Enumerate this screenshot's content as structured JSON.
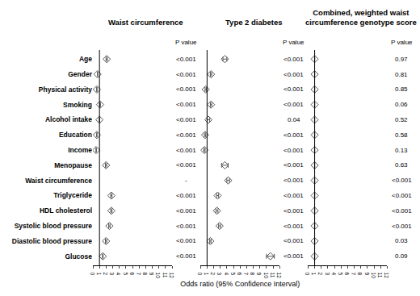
{
  "chart_data": {
    "type": "forest",
    "x_title": "Odds ratio (95% Confidence Interval)",
    "p_header": "P value",
    "color": "#555555",
    "marker": "diamond-open",
    "reference": 1,
    "xlim": [
      0,
      12
    ],
    "xticks": [
      0,
      1,
      2,
      3,
      4,
      5,
      6,
      7,
      8,
      9,
      10,
      11,
      12
    ],
    "categories": [
      "Age",
      "Gender",
      "Physical activity",
      "Smoking",
      "Alcohol intake",
      "Education",
      "Income",
      "Menopause",
      "Waist circumference",
      "Triglyceride",
      "HDL cholesterol",
      "Systolic blood pressure",
      "Diastolic blood pressure",
      "Glucose"
    ],
    "panels": [
      {
        "title": "Waist circumference",
        "values": [
          2.1,
          0.7,
          0.6,
          1.1,
          1.0,
          0.6,
          0.5,
          2.0,
          null,
          2.8,
          2.8,
          2.5,
          2.0,
          1.5
        ],
        "ci_low": [
          2.0,
          0.68,
          0.57,
          1.05,
          0.97,
          0.57,
          0.47,
          1.9,
          null,
          2.7,
          2.7,
          2.4,
          1.9,
          1.45
        ],
        "ci_high": [
          2.2,
          0.72,
          0.63,
          1.15,
          1.03,
          0.63,
          0.53,
          2.1,
          null,
          2.9,
          2.9,
          2.6,
          2.1,
          1.55
        ],
        "p_values": [
          "<0.001",
          "<0.001",
          "<0.001",
          "<0.001",
          "<0.001",
          "<0.001",
          "<0.001",
          "<0.001",
          "-",
          "<0.001",
          "<0.001",
          "<0.001",
          "<0.001",
          "<0.001"
        ]
      },
      {
        "title": "Type 2 diabetes",
        "values": [
          3.7,
          1.6,
          0.8,
          1.6,
          1.2,
          0.7,
          0.6,
          3.7,
          4.2,
          2.6,
          2.5,
          2.9,
          1.5,
          10.6
        ],
        "ci_low": [
          3.4,
          1.5,
          0.7,
          1.5,
          1.0,
          0.6,
          0.5,
          3.2,
          4.0,
          2.45,
          2.35,
          2.75,
          1.4,
          10.0
        ],
        "ci_high": [
          4.0,
          1.7,
          0.9,
          1.7,
          1.4,
          0.8,
          0.7,
          4.2,
          4.4,
          2.75,
          2.65,
          3.05,
          1.6,
          11.2
        ],
        "p_values": [
          "<0.001",
          "<0.001",
          "<0.001",
          "<0.001",
          "0.04",
          "<0.001",
          "<0.001",
          "<0.001",
          "<0.001",
          "<0.001",
          "<0.001",
          "<0.001",
          "<0.001",
          "<0.001"
        ]
      },
      {
        "title": "Combined, weighted waist\ncircumference genotype score",
        "values": [
          1.0,
          1.0,
          1.0,
          1.0,
          1.0,
          1.0,
          1.0,
          1.0,
          1.0,
          1.0,
          1.0,
          1.0,
          1.0,
          1.0
        ],
        "ci_low": [
          0.98,
          0.98,
          0.98,
          0.98,
          0.98,
          0.98,
          0.98,
          0.98,
          0.98,
          0.98,
          0.98,
          0.98,
          0.98,
          0.98
        ],
        "ci_high": [
          1.02,
          1.02,
          1.02,
          1.02,
          1.02,
          1.02,
          1.02,
          1.02,
          1.02,
          1.02,
          1.02,
          1.02,
          1.02,
          1.02
        ],
        "p_values": [
          "0.97",
          "0.81",
          "0.85",
          "0.06",
          "0.52",
          "0.58",
          "0.13",
          "0.63",
          "<0.001",
          "<0.001",
          "<0.001",
          "<0.001",
          "0.03",
          "0.09"
        ]
      }
    ]
  }
}
